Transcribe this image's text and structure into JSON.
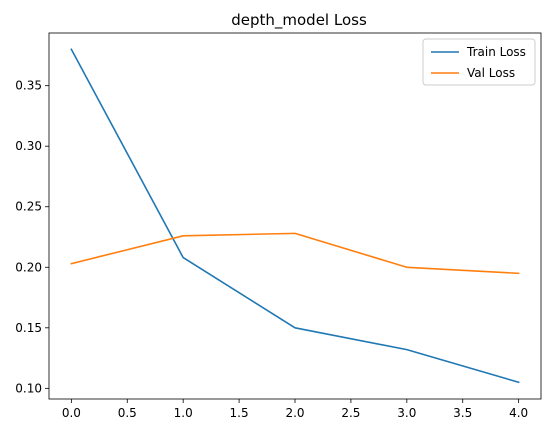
{
  "chart_data": {
    "type": "line",
    "title": "depth_model Loss",
    "xlabel": "",
    "ylabel": "",
    "xlim": [
      -0.2,
      4.2
    ],
    "ylim": [
      0.0912,
      0.3935
    ],
    "xticks": [
      0.0,
      0.5,
      1.0,
      1.5,
      2.0,
      2.5,
      3.0,
      3.5,
      4.0
    ],
    "xtick_labels": [
      "0.0",
      "0.5",
      "1.0",
      "1.5",
      "2.0",
      "2.5",
      "3.0",
      "3.5",
      "4.0"
    ],
    "yticks": [
      0.1,
      0.15,
      0.2,
      0.25,
      0.3,
      0.35
    ],
    "ytick_labels": [
      "0.10",
      "0.15",
      "0.20",
      "0.25",
      "0.30",
      "0.35"
    ],
    "grid": false,
    "legend_position": "top-right",
    "x": [
      0,
      1,
      2,
      3,
      4
    ],
    "series": [
      {
        "name": "Train Loss",
        "color": "#1f77b4",
        "values": [
          0.38,
          0.208,
          0.15,
          0.132,
          0.105
        ]
      },
      {
        "name": "Val Loss",
        "color": "#ff7f0e",
        "values": [
          0.203,
          0.226,
          0.228,
          0.2,
          0.195
        ]
      }
    ]
  }
}
